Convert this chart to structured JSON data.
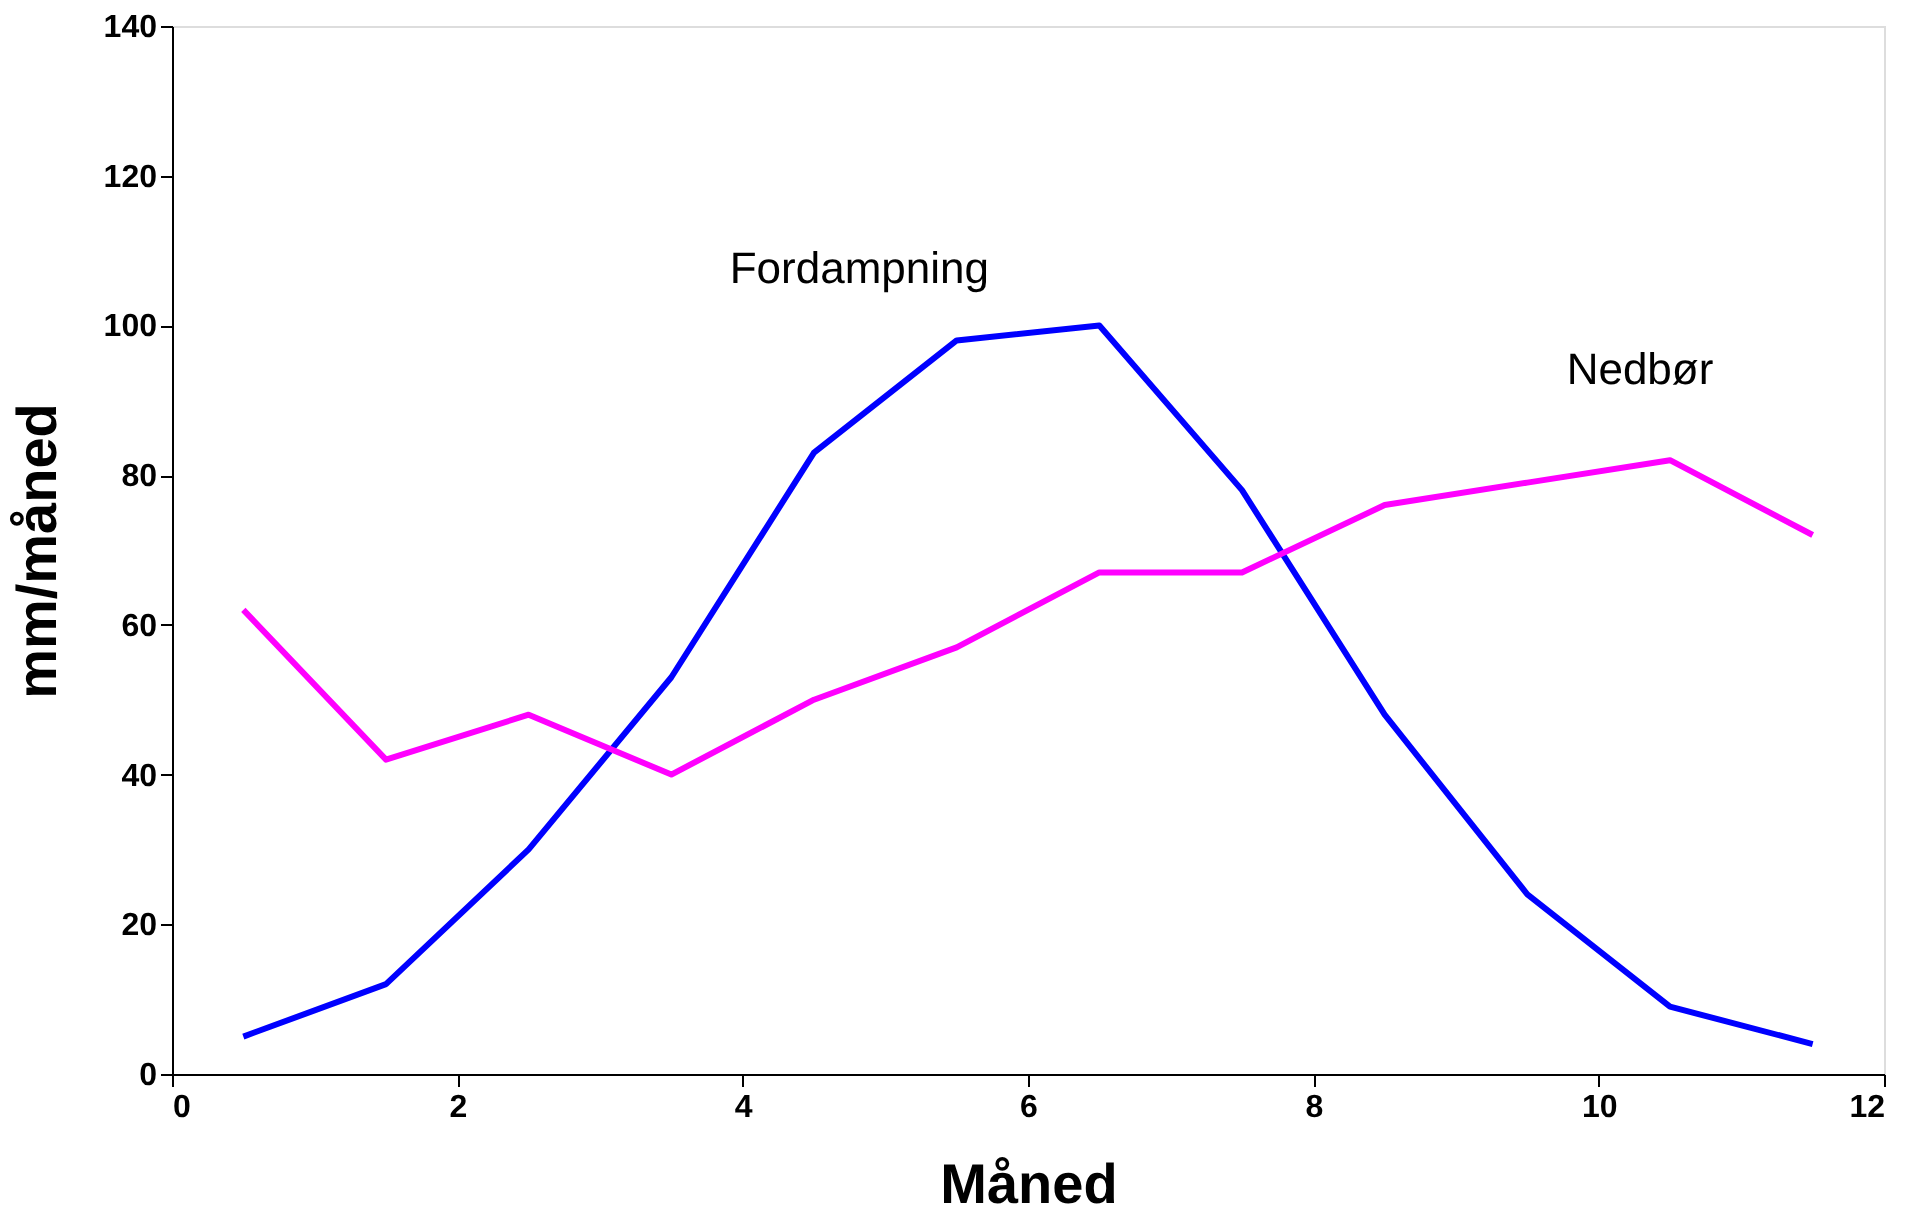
{
  "chart_data": {
    "type": "line",
    "xlabel": "Måned",
    "ylabel": "mm/måned",
    "x": [
      0.5,
      1.5,
      2.5,
      3.5,
      4.5,
      5.5,
      6.5,
      7.5,
      8.5,
      9.5,
      10.5,
      11.5
    ],
    "series": [
      {
        "name": "Fordampning",
        "color": "#0000ff",
        "values": [
          5,
          12,
          30,
          53,
          83,
          98,
          100,
          78,
          48,
          24,
          9,
          4
        ]
      },
      {
        "name": "Nedbør",
        "color": "#ff00ff",
        "values": [
          62,
          42,
          48,
          40,
          50,
          57,
          67,
          67,
          76,
          79,
          82,
          72
        ]
      }
    ],
    "xlim": [
      0,
      12
    ],
    "xticks": [
      0,
      2,
      4,
      6,
      8,
      10,
      12
    ],
    "ylim": [
      0,
      140
    ],
    "yticks": [
      0,
      20,
      40,
      60,
      80,
      100,
      120,
      140
    ],
    "grid": false,
    "marker": "none",
    "line_style": "solid"
  }
}
